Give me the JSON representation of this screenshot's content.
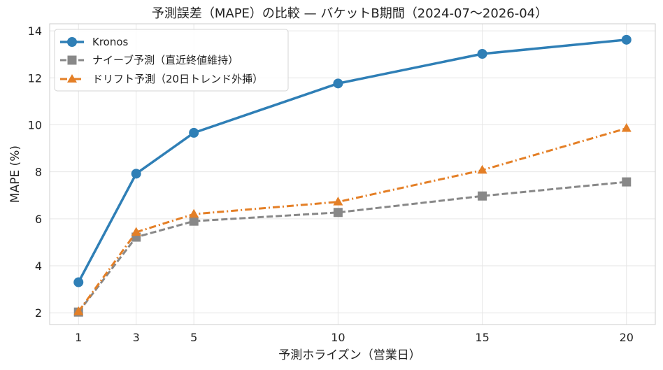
{
  "chart_data": {
    "type": "line",
    "title": "予測誤差（MAPE）の比較 — バケットB期間（2024-07〜2026-04）",
    "xlabel": "予測ホライズン（営業日）",
    "ylabel": "MAPE (%)",
    "x": [
      1,
      3,
      5,
      10,
      15,
      20
    ],
    "x_ticks": [
      "1",
      "3",
      "5",
      "10",
      "15",
      "20"
    ],
    "xlim": [
      0,
      21
    ],
    "ylim": [
      1.5,
      14.3
    ],
    "y_ticks": [
      "2",
      "4",
      "6",
      "8",
      "10",
      "12",
      "14"
    ],
    "grid": true,
    "legend_position": "top-left",
    "series": [
      {
        "name": "Kronos",
        "values": [
          3.3,
          7.92,
          9.66,
          11.76,
          13.02,
          13.62
        ],
        "color": "#2f7fb6",
        "marker": "circle",
        "line_style": "solid"
      },
      {
        "name": "ナイーブ予測（直近終値維持）",
        "values": [
          2.03,
          5.22,
          5.9,
          6.27,
          6.97,
          7.57
        ],
        "color": "#888888",
        "marker": "square",
        "line_style": "dashed"
      },
      {
        "name": "ドリフト予測（20日トレンド外挿）",
        "values": [
          2.05,
          5.43,
          6.2,
          6.72,
          8.07,
          9.85
        ],
        "color": "#e47f26",
        "marker": "triangle",
        "line_style": "dash-dot"
      }
    ]
  }
}
